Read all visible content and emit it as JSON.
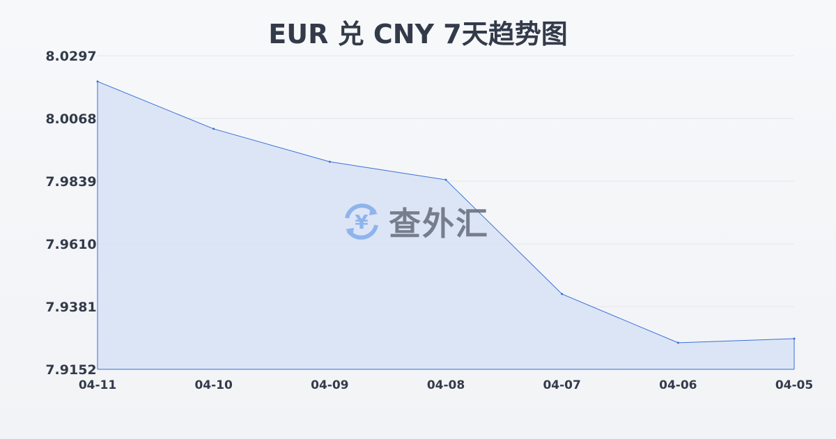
{
  "chart_data": {
    "type": "area",
    "title": "EUR 兑 CNY 7天趋势图",
    "x": [
      "04-11",
      "04-10",
      "04-09",
      "04-08",
      "04-07",
      "04-06",
      "04-05"
    ],
    "values": [
      8.0203,
      8.003,
      7.991,
      7.9844,
      7.9427,
      7.9249,
      7.9264
    ],
    "yticks": [
      "8.0297",
      "8.0068",
      "7.9839",
      "7.9610",
      "7.9381",
      "7.9152"
    ],
    "ylim": [
      7.9152,
      8.0297
    ],
    "grid": true,
    "colors": {
      "line": "#3a6fd8",
      "fill": "#d7e2f6",
      "text": "#333b4a",
      "grid": "#e3e6ec"
    }
  },
  "watermark": {
    "text": "查外汇",
    "icon": "yen-exchange-icon"
  }
}
